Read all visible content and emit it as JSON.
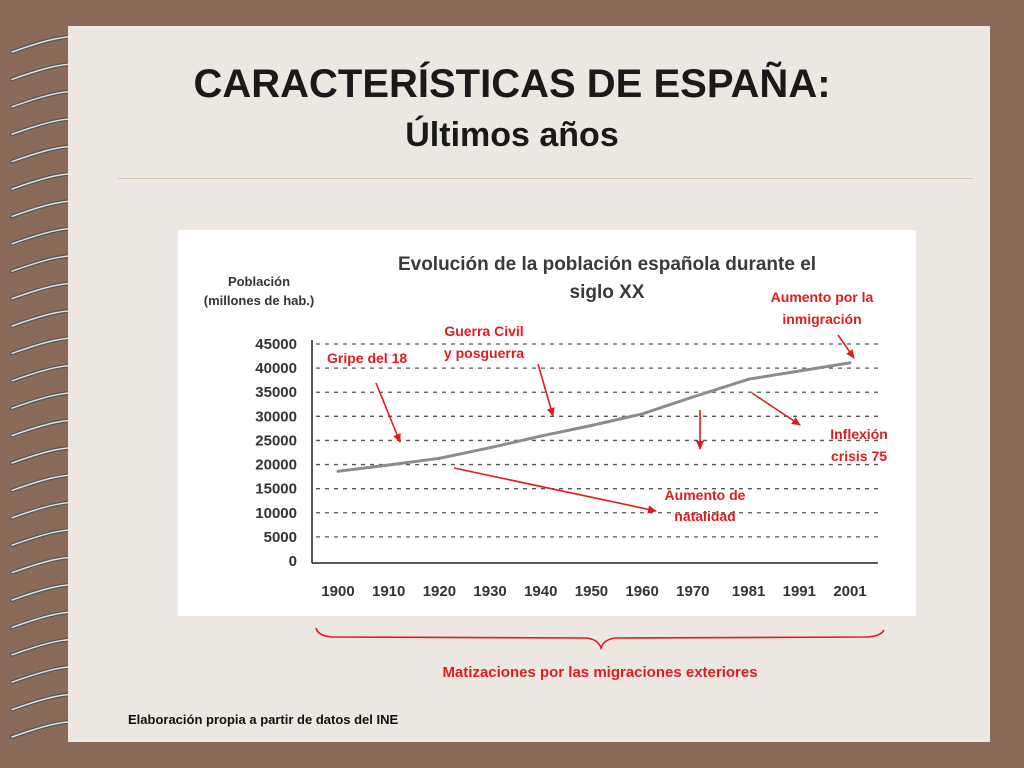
{
  "slide": {
    "title": "CARACTERÍSTICAS DE ESPAÑA:",
    "subtitle": "Últimos años",
    "note": "Matizaciones por las migraciones exteriores",
    "source": "Elaboración propia a partir de datos del INE"
  },
  "colors": {
    "annotation": "#dc1e1e",
    "line": "#8c8c8c",
    "background": "#8a6b5a",
    "slide": "#ede7e2"
  },
  "chart_data": {
    "type": "line",
    "title_lines": [
      "Evolución de la población española durante el",
      "siglo XX"
    ],
    "ylabel_lines": [
      "Población",
      "(millones de hab.)"
    ],
    "xlabel": "",
    "categories": [
      "1900",
      "1910",
      "1920",
      "1930",
      "1940",
      "1950",
      "1960",
      "1970",
      "1981",
      "1991",
      "2001"
    ],
    "yticks": [
      "0",
      "5000",
      "10000",
      "15000",
      "20000",
      "25000",
      "30000",
      "35000",
      "40000",
      "45000"
    ],
    "ylim": [
      0,
      45000
    ],
    "grid": "horizontal-dashed",
    "series": [
      {
        "values": [
          18600,
          19900,
          21300,
          23500,
          25900,
          28100,
          30500,
          34000,
          37700,
          39400,
          41100
        ]
      }
    ],
    "annotations": [
      {
        "label_lines": [
          "Gripe del 18"
        ]
      },
      {
        "label_lines": [
          "Guerra Civil",
          "y posguerra"
        ]
      },
      {
        "label_lines": [
          "Aumento por la",
          "inmigración"
        ]
      },
      {
        "label_lines": [
          "Inflexión",
          "crisis 75"
        ]
      },
      {
        "label_lines": [
          "Aumento de",
          "natalidad"
        ]
      }
    ]
  }
}
